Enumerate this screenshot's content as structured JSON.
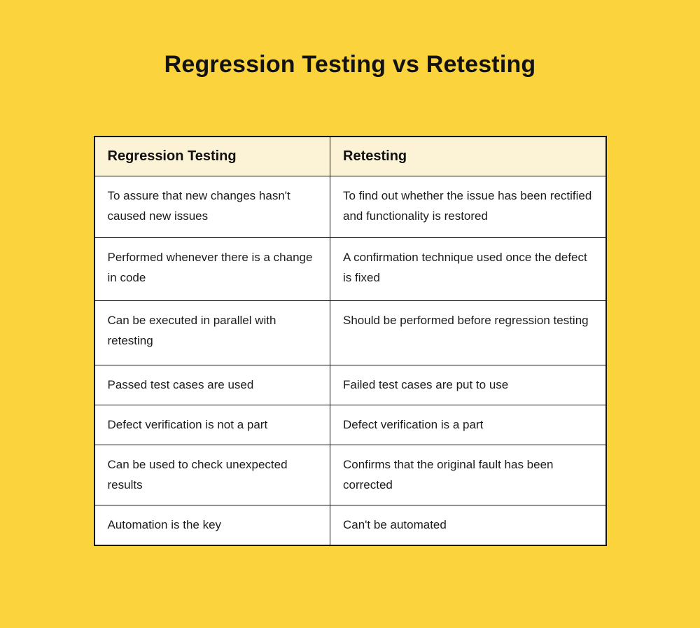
{
  "title": "Regression Testing vs Retesting",
  "colors": {
    "page_background": "#FBD33C",
    "header_background": "#FCF3D6",
    "row_background": "#FFFFFF",
    "border": "#161616",
    "text": "#1C1C1C"
  },
  "chart_data": {
    "type": "table",
    "title": "Regression Testing vs Retesting",
    "columns": [
      "Regression Testing",
      "Retesting"
    ],
    "rows": [
      [
        "To assure that new changes hasn't caused new issues",
        "To find out whether the issue has been rectified and functionality is restored"
      ],
      [
        "Performed whenever there is a change in code",
        "A confirmation technique used once the defect is fixed"
      ],
      [
        "Can be executed in parallel with retesting",
        "Should be performed before regression testing"
      ],
      [
        "Passed test cases are used",
        "Failed test cases are put to use"
      ],
      [
        "Defect verification is not a part",
        "Defect verification is a part"
      ],
      [
        "Can be used to check unexpected results",
        "Confirms that the original fault has been corrected"
      ],
      [
        "Automation is the key",
        "Can't be automated"
      ]
    ]
  }
}
